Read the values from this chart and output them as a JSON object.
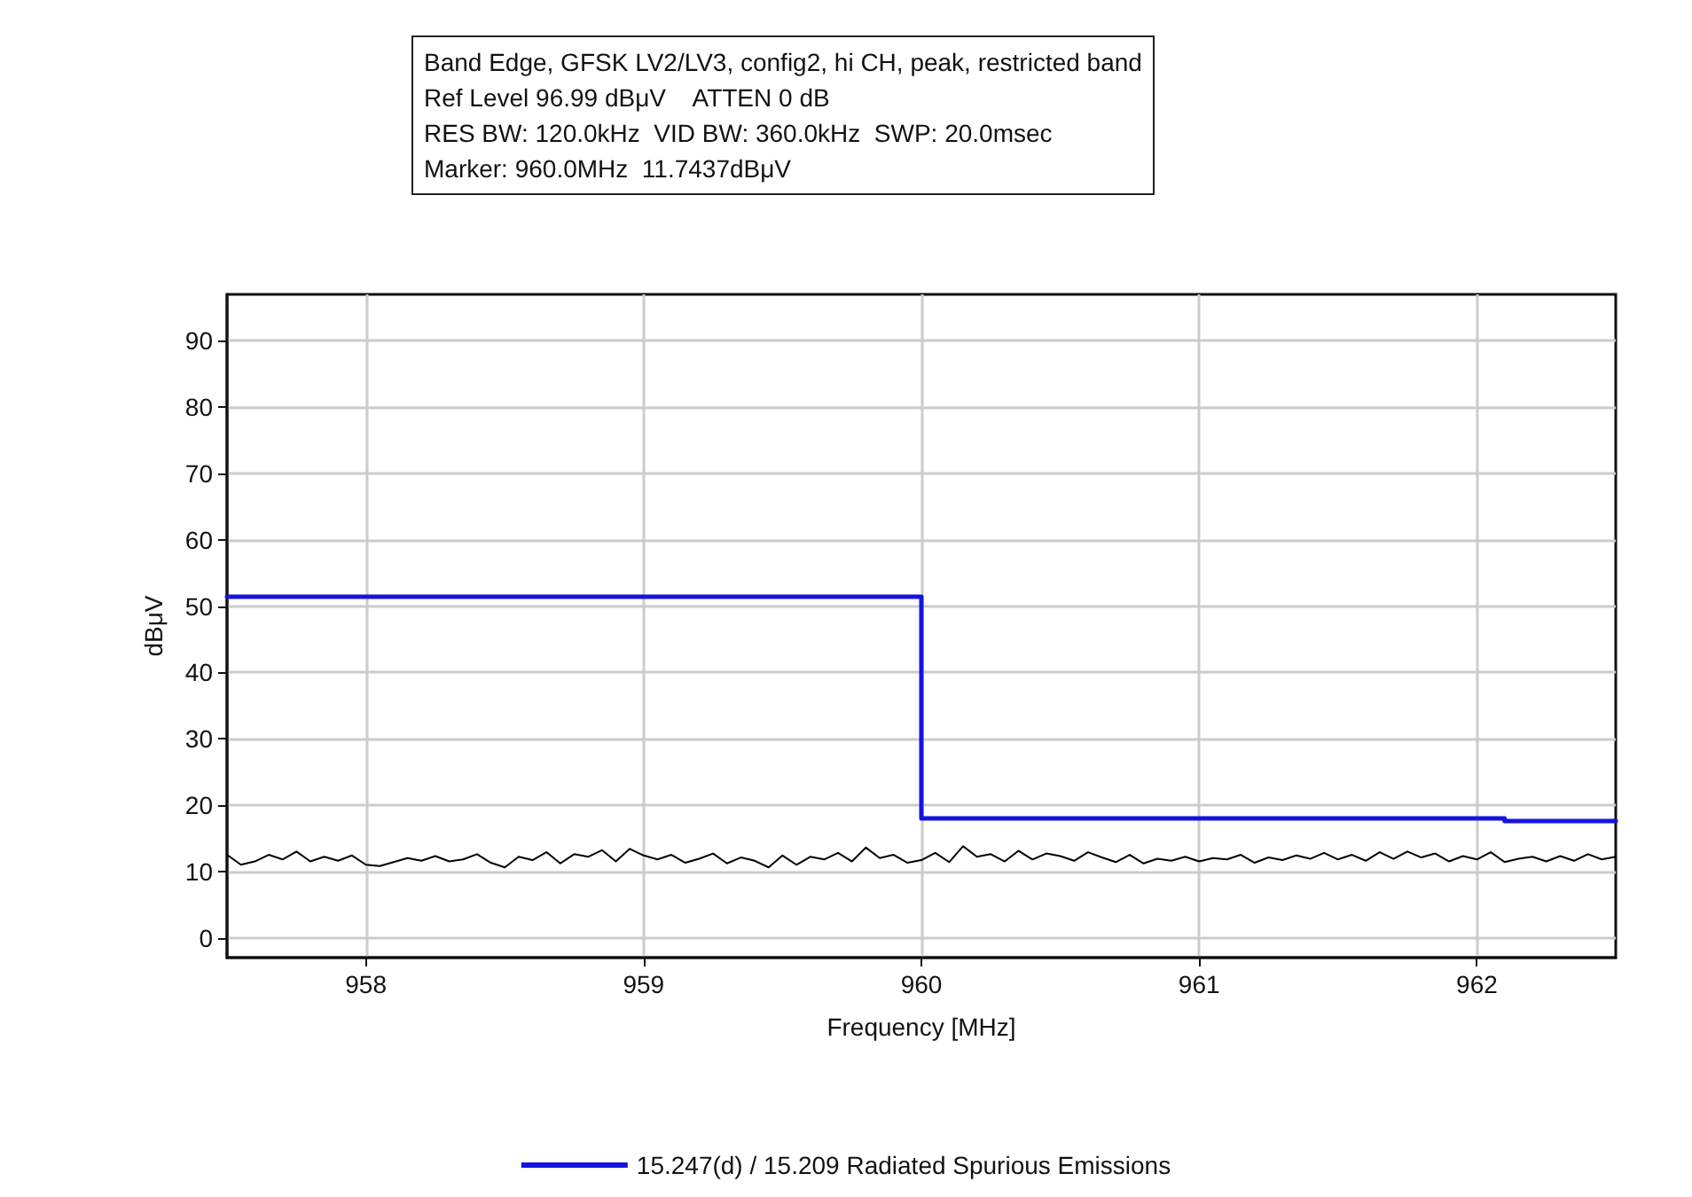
{
  "chart_data": {
    "type": "line",
    "title": "Band Edge, GFSK LV2/LV3, config2, hi CH, peak, restricted band",
    "annotations": [
      "Ref Level 96.99 dBμV    ATTEN 0 dB",
      "RES BW: 120.0kHz  VID BW: 360.0kHz  SWP: 20.0msec",
      "Marker: 960.0MHz  11.7437dBμV"
    ],
    "xlabel": "Frequency [MHz]",
    "ylabel": "dBμV",
    "xlim": [
      957.5,
      962.5
    ],
    "xticks": [
      958,
      959,
      960,
      961,
      962
    ],
    "ylim": [
      -3,
      97
    ],
    "yticks": [
      0,
      10,
      20,
      30,
      40,
      50,
      60,
      70,
      80,
      90
    ],
    "grid": true,
    "legend": "bottom",
    "marker": "none",
    "line_style": "solid",
    "series": [
      {
        "color": "#000000",
        "x": [
          957.5,
          957.55,
          957.6,
          957.65,
          957.7,
          957.75,
          957.8,
          957.85,
          957.9,
          957.95,
          958,
          958.05,
          958.1,
          958.15,
          958.2,
          958.25,
          958.3,
          958.35,
          958.4,
          958.45,
          958.5,
          958.55,
          958.6,
          958.65,
          958.7,
          958.75,
          958.8,
          958.85,
          958.9,
          958.95,
          959,
          959.05,
          959.1,
          959.15,
          959.2,
          959.25,
          959.3,
          959.35,
          959.4,
          959.45,
          959.5,
          959.55,
          959.6,
          959.65,
          959.7,
          959.75,
          959.8,
          959.85,
          959.9,
          959.95,
          960,
          960.05,
          960.1,
          960.15,
          960.2,
          960.25,
          960.3,
          960.35,
          960.4,
          960.45,
          960.5,
          960.55,
          960.6,
          960.65,
          960.7,
          960.75,
          960.8,
          960.85,
          960.9,
          960.95,
          961,
          961.05,
          961.1,
          961.15,
          961.2,
          961.25,
          961.3,
          961.35,
          961.4,
          961.45,
          961.5,
          961.55,
          961.6,
          961.65,
          961.7,
          961.75,
          961.8,
          961.85,
          961.9,
          961.95,
          962,
          962.05,
          962.1,
          962.15,
          962.2,
          962.25,
          962.3,
          962.35,
          962.4,
          962.45,
          962.5
        ],
        "values": [
          12.5,
          11,
          11.5,
          12.5,
          11.8,
          13,
          11.5,
          12.2,
          11.6,
          12.4,
          11,
          10.8,
          11.4,
          12,
          11.6,
          12.3,
          11.5,
          11.8,
          12.6,
          11.3,
          10.6,
          12.2,
          11.7,
          12.9,
          11.2,
          12.6,
          12.2,
          13.2,
          11.5,
          13.4,
          12.4,
          11.8,
          12.5,
          11.3,
          11.9,
          12.7,
          11.2,
          12.1,
          11.6,
          10.6,
          12.4,
          11,
          12.2,
          11.8,
          12.8,
          11.5,
          13.6,
          12,
          12.5,
          11.3,
          11.7,
          12.8,
          11.4,
          13.8,
          12.2,
          12.6,
          11.5,
          13.1,
          11.8,
          12.7,
          12.3,
          11.6,
          12.9,
          12.1,
          11.4,
          12.5,
          11.2,
          11.9,
          11.6,
          12.2,
          11.5,
          12,
          11.8,
          12.5,
          11.3,
          12.1,
          11.7,
          12.4,
          11.9,
          12.8,
          11.8,
          12.5,
          11.6,
          12.9,
          11.9,
          13,
          12.1,
          12.7,
          11.5,
          12.3,
          11.8,
          12.9,
          11.4,
          11.9,
          12.2,
          11.5,
          12.3,
          11.6,
          12.6,
          11.8,
          12.2
        ]
      },
      {
        "name": "15.247(d) / 15.209 Radiated Spurious Emissions",
        "color": "#1414e0",
        "x": [
          957.5,
          960,
          960,
          962.1,
          962.1,
          962.5
        ],
        "values": [
          51.4,
          51.4,
          18,
          18,
          17.6,
          17.6
        ]
      }
    ]
  }
}
